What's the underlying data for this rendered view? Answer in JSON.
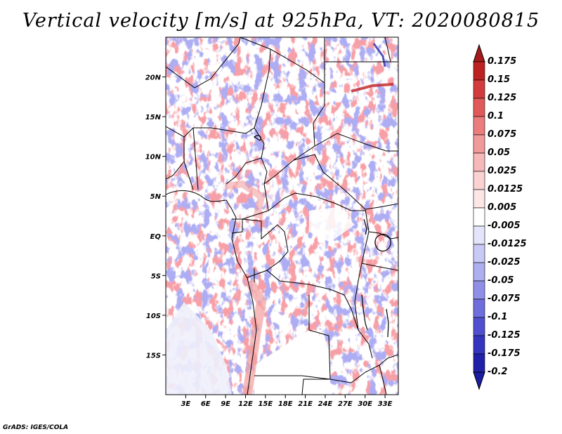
{
  "title": "Vertical velocity [m/s] at 925hPa, VT: 2020080815",
  "credit": "GrADS: IGES/COLA",
  "map": {
    "lon_min": 0,
    "lon_max": 35,
    "lat_min": -20,
    "lat_max": 25,
    "lat_ticks": [
      {
        "value": 20,
        "label": "20N"
      },
      {
        "value": 15,
        "label": "15N"
      },
      {
        "value": 10,
        "label": "10N"
      },
      {
        "value": 5,
        "label": "5N"
      },
      {
        "value": 0,
        "label": "EQ"
      },
      {
        "value": -5,
        "label": "5S"
      },
      {
        "value": -10,
        "label": "10S"
      },
      {
        "value": -15,
        "label": "15S"
      }
    ],
    "lon_ticks": [
      {
        "value": 3,
        "label": "3E"
      },
      {
        "value": 6,
        "label": "6E"
      },
      {
        "value": 9,
        "label": "9E"
      },
      {
        "value": 12,
        "label": "12E"
      },
      {
        "value": 15,
        "label": "15E"
      },
      {
        "value": 18,
        "label": "18E"
      },
      {
        "value": 21,
        "label": "21E"
      },
      {
        "value": 24,
        "label": "24E"
      },
      {
        "value": 27,
        "label": "27E"
      },
      {
        "value": 30,
        "label": "30E"
      },
      {
        "value": 33,
        "label": "33E"
      }
    ]
  },
  "colorbar": {
    "levels": [
      {
        "label": "0.175",
        "color": "#a51a1a"
      },
      {
        "label": "0.15",
        "color": "#bd2222"
      },
      {
        "label": "0.125",
        "color": "#d23c3c"
      },
      {
        "label": "0.1",
        "color": "#e05a5a"
      },
      {
        "label": "0.075",
        "color": "#eb7d7d"
      },
      {
        "label": "0.05",
        "color": "#f09a9a"
      },
      {
        "label": "0.025",
        "color": "#f6b8b8"
      },
      {
        "label": "0.0125",
        "color": "#fad2d2"
      },
      {
        "label": "0.005",
        "color": "#fde6e6"
      },
      {
        "label": "-0.005",
        "color": "#ffffff"
      },
      {
        "label": "-0.0125",
        "color": "#e4e4fb"
      },
      {
        "label": "-0.025",
        "color": "#c9c9f6"
      },
      {
        "label": "-0.05",
        "color": "#aeaef0"
      },
      {
        "label": "-0.075",
        "color": "#8f8fe8"
      },
      {
        "label": "-0.1",
        "color": "#6e6edd"
      },
      {
        "label": "-0.125",
        "color": "#4f4fd0"
      },
      {
        "label": "-0.175",
        "color": "#3434be"
      },
      {
        "label": "-0.2",
        "color": "#2020a8"
      }
    ],
    "top_arrow_color": "#a51a1a",
    "bottom_arrow_color": "#1c1ca0"
  }
}
